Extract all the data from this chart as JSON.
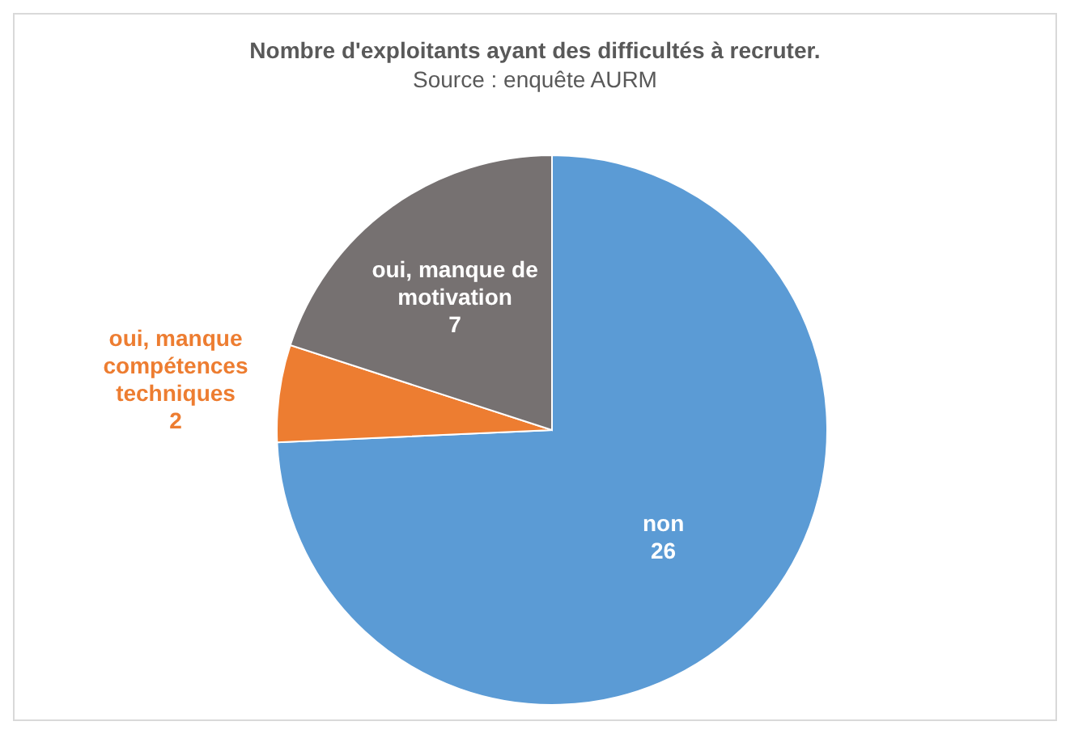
{
  "chart_data": {
    "type": "pie",
    "title": "Nombre d'exploitants ayant des difficultés à recruter.",
    "subtitle": "Source : enquête AURM",
    "categories": [
      "non",
      "oui, manque compétences techniques",
      "oui, manque de motivation"
    ],
    "values": [
      26,
      2,
      7
    ],
    "colors": [
      "#5b9bd5",
      "#ed7d31",
      "#767171"
    ],
    "data_labels": true,
    "legend": false
  }
}
